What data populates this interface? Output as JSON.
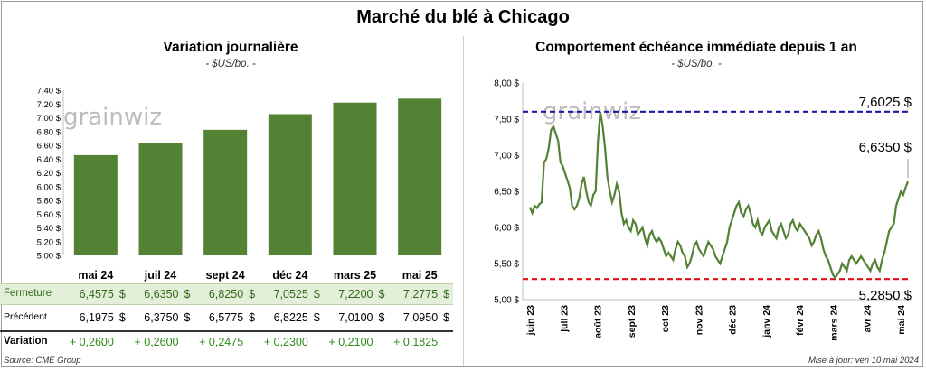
{
  "main_title": "Marché du blé à Chicago",
  "left": {
    "title": "Variation  journalière",
    "subtitle": "- $US/bo. -",
    "watermark": "grainwiz",
    "table": {
      "row_labels": {
        "fermeture": "Fermeture",
        "precedent": "Précédent",
        "variation": "Variation"
      },
      "currency": "$",
      "fermeture": [
        "6,4575",
        "6,6350",
        "6,8250",
        "7,0525",
        "7,2200",
        "7,2775"
      ],
      "precedent": [
        "6,1975",
        "6,3750",
        "6,5775",
        "6,8225",
        "7,0100",
        "7,0950"
      ],
      "variation": [
        "+ 0,2600",
        "+ 0,2600",
        "+ 0,2475",
        "+ 0,2300",
        "+ 0,2100",
        "+ 0,1825"
      ]
    }
  },
  "right": {
    "title": "Comportement  échéance immédiate depuis 1 an",
    "subtitle": "- $US/bo. -",
    "watermark": "grainwiz",
    "high_label": "7,6025 $",
    "last_label": "6,6350 $",
    "low_label": "5,2850 $"
  },
  "footer": {
    "source": "Source: CME Group",
    "updated": "Mise à jour: ven 10 mai 2024"
  },
  "colors": {
    "bar": "#548235",
    "line": "#548235",
    "high": "#1a1aa6",
    "low": "#e01010"
  },
  "chart_data": [
    {
      "type": "bar",
      "title": "Variation  journalière",
      "subtitle": "- $US/bo. -",
      "categories": [
        "mai 24",
        "juil 24",
        "sept 24",
        "déc 24",
        "mars 25",
        "mai 25"
      ],
      "values": [
        6.4575,
        6.635,
        6.825,
        7.0525,
        7.22,
        7.2775
      ],
      "ylim": [
        5.0,
        7.4
      ],
      "yticks": [
        "5,00 $",
        "5,20 $",
        "5,40 $",
        "5,60 $",
        "5,80 $",
        "6,00 $",
        "6,20 $",
        "6,40 $",
        "6,60 $",
        "6,80 $",
        "7,00 $",
        "7,20 $",
        "7,40 $"
      ],
      "grid": false
    },
    {
      "type": "line",
      "title": "Comportement  échéance immédiate depuis 1 an",
      "subtitle": "- $US/bo. -",
      "ylim": [
        5.0,
        8.0
      ],
      "yticks": [
        "5,00 $",
        "5,50 $",
        "6,00 $",
        "6,50 $",
        "7,00 $",
        "7,50 $",
        "8,00 $"
      ],
      "xticks": [
        "juin 23",
        "juil 23",
        "août 23",
        "sept 23",
        "oct 23",
        "nov 23",
        "déc 23",
        "janv 24",
        "févr 24",
        "mars 24",
        "avr 24",
        "mai 24"
      ],
      "x_start": "2023-05-10",
      "x_end": "2024-05-10",
      "high": 7.6025,
      "low": 5.285,
      "last": 6.635,
      "series": [
        {
          "values": [
            6.28,
            6.2,
            6.3,
            6.27,
            6.32,
            6.35,
            6.9,
            6.95,
            7.1,
            7.35,
            7.4,
            7.3,
            7.2,
            6.9,
            6.85,
            6.75,
            6.65,
            6.55,
            6.3,
            6.25,
            6.3,
            6.4,
            6.6,
            6.7,
            6.5,
            6.35,
            6.3,
            6.45,
            6.5,
            7.2,
            7.6,
            7.4,
            7.1,
            6.7,
            6.5,
            6.35,
            6.45,
            6.6,
            6.5,
            6.2,
            6.05,
            6.1,
            6.0,
            5.95,
            6.1,
            6.05,
            5.9,
            5.95,
            6.0,
            5.85,
            5.75,
            5.9,
            5.95,
            5.85,
            5.8,
            5.85,
            5.8,
            5.7,
            5.6,
            5.65,
            5.6,
            5.55,
            5.7,
            5.8,
            5.75,
            5.65,
            5.6,
            5.45,
            5.5,
            5.6,
            5.75,
            5.8,
            5.7,
            5.65,
            5.6,
            5.7,
            5.8,
            5.75,
            5.7,
            5.6,
            5.55,
            5.5,
            5.6,
            5.7,
            5.8,
            6.0,
            6.1,
            6.2,
            6.3,
            6.35,
            6.2,
            6.15,
            6.25,
            6.3,
            6.2,
            6.05,
            6.0,
            6.1,
            5.95,
            5.9,
            6.0,
            6.05,
            6.1,
            5.95,
            5.9,
            5.85,
            6.0,
            6.05,
            5.95,
            5.85,
            5.9,
            6.05,
            6.1,
            6.0,
            5.95,
            6.05,
            6.0,
            5.95,
            5.9,
            5.85,
            5.75,
            5.8,
            5.9,
            5.95,
            5.85,
            5.7,
            5.6,
            5.55,
            5.45,
            5.35,
            5.3,
            5.35,
            5.4,
            5.5,
            5.45,
            5.4,
            5.55,
            5.6,
            5.55,
            5.5,
            5.55,
            5.6,
            5.55,
            5.5,
            5.45,
            5.4,
            5.5,
            5.55,
            5.45,
            5.4,
            5.55,
            5.65,
            5.8,
            5.95,
            6.0,
            6.05,
            6.3,
            6.4,
            6.5,
            6.45,
            6.55,
            6.635
          ]
        }
      ]
    }
  ]
}
